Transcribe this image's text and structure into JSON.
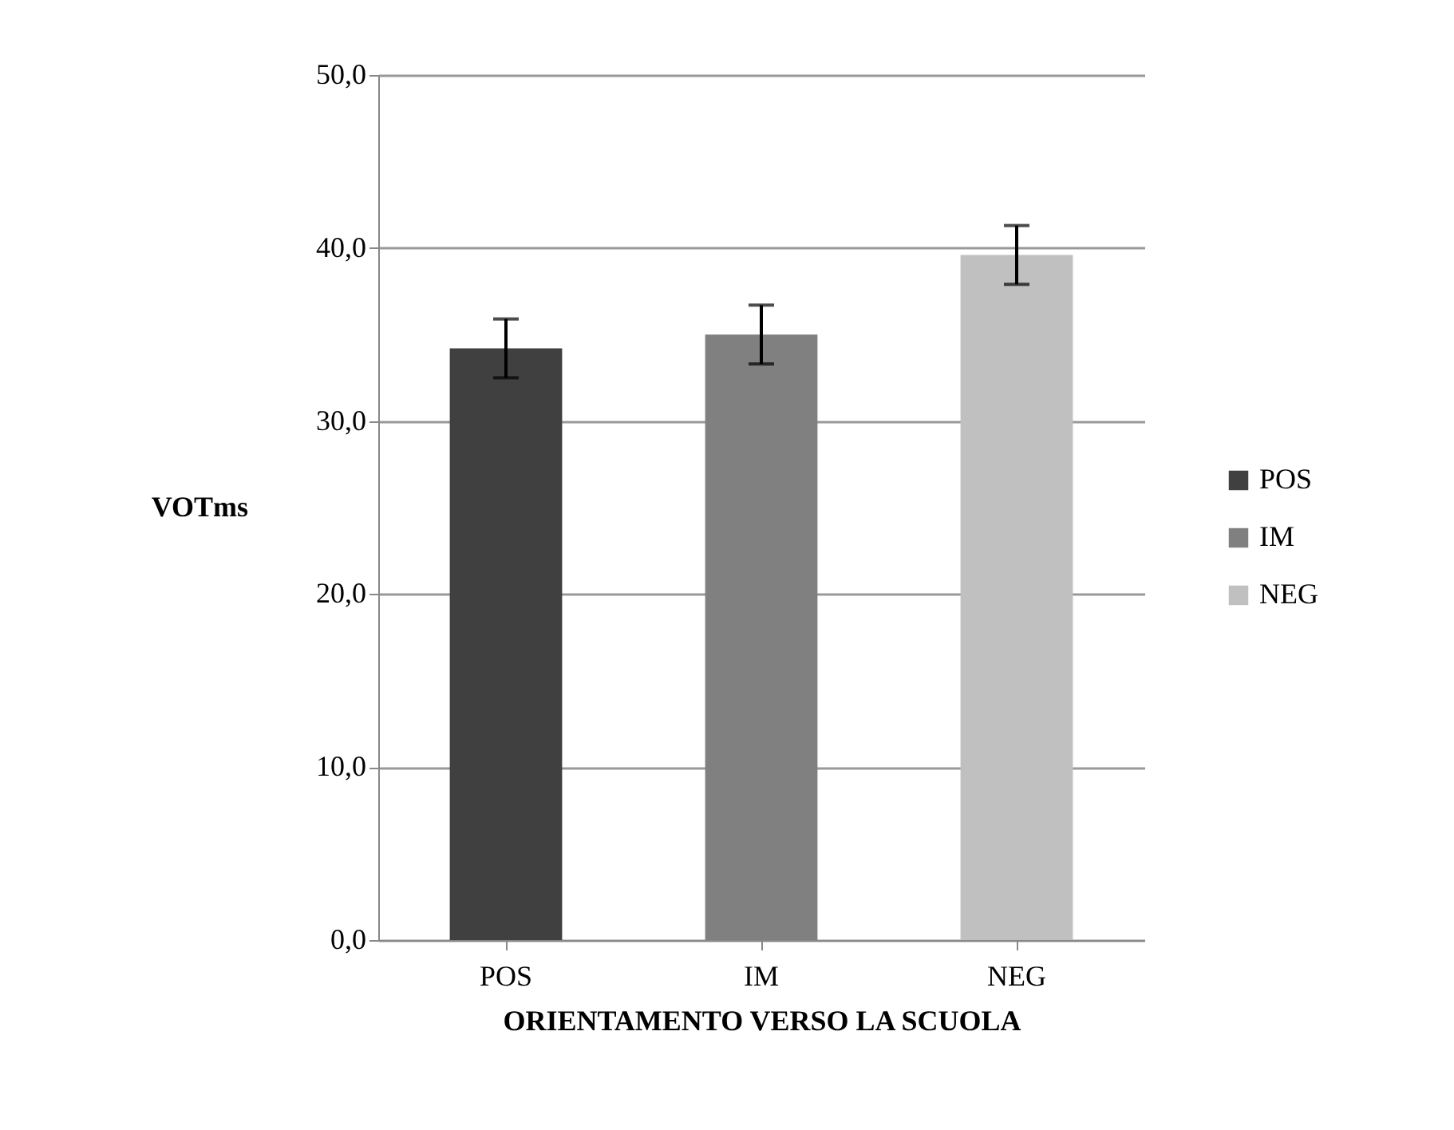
{
  "chart_data": {
    "type": "bar",
    "xlabel": "ORIENTAMENTO VERSO LA SCUOLA",
    "ylabel": "VOTms",
    "categories": [
      "POS",
      "IM",
      "NEG"
    ],
    "series": [
      {
        "name": "POS",
        "color": "#404040",
        "values": [
          34.2,
          null,
          null
        ],
        "errors": [
          1.7,
          null,
          null
        ]
      },
      {
        "name": "IM",
        "color": "#808080",
        "values": [
          null,
          35.0,
          null
        ],
        "errors": [
          null,
          1.7,
          null
        ]
      },
      {
        "name": "NEG",
        "color": "#c0c0c0",
        "values": [
          null,
          null,
          39.6
        ],
        "errors": [
          null,
          null,
          1.7
        ]
      }
    ],
    "ylim": [
      0,
      50
    ],
    "yticks": [
      {
        "value": 0,
        "label": "0,0"
      },
      {
        "value": 10,
        "label": "10,0"
      },
      {
        "value": 20,
        "label": "20,0"
      },
      {
        "value": 30,
        "label": "30,0"
      },
      {
        "value": 40,
        "label": "40,0"
      },
      {
        "value": 50,
        "label": "50,0"
      }
    ],
    "grid": "y",
    "legend": "right"
  }
}
